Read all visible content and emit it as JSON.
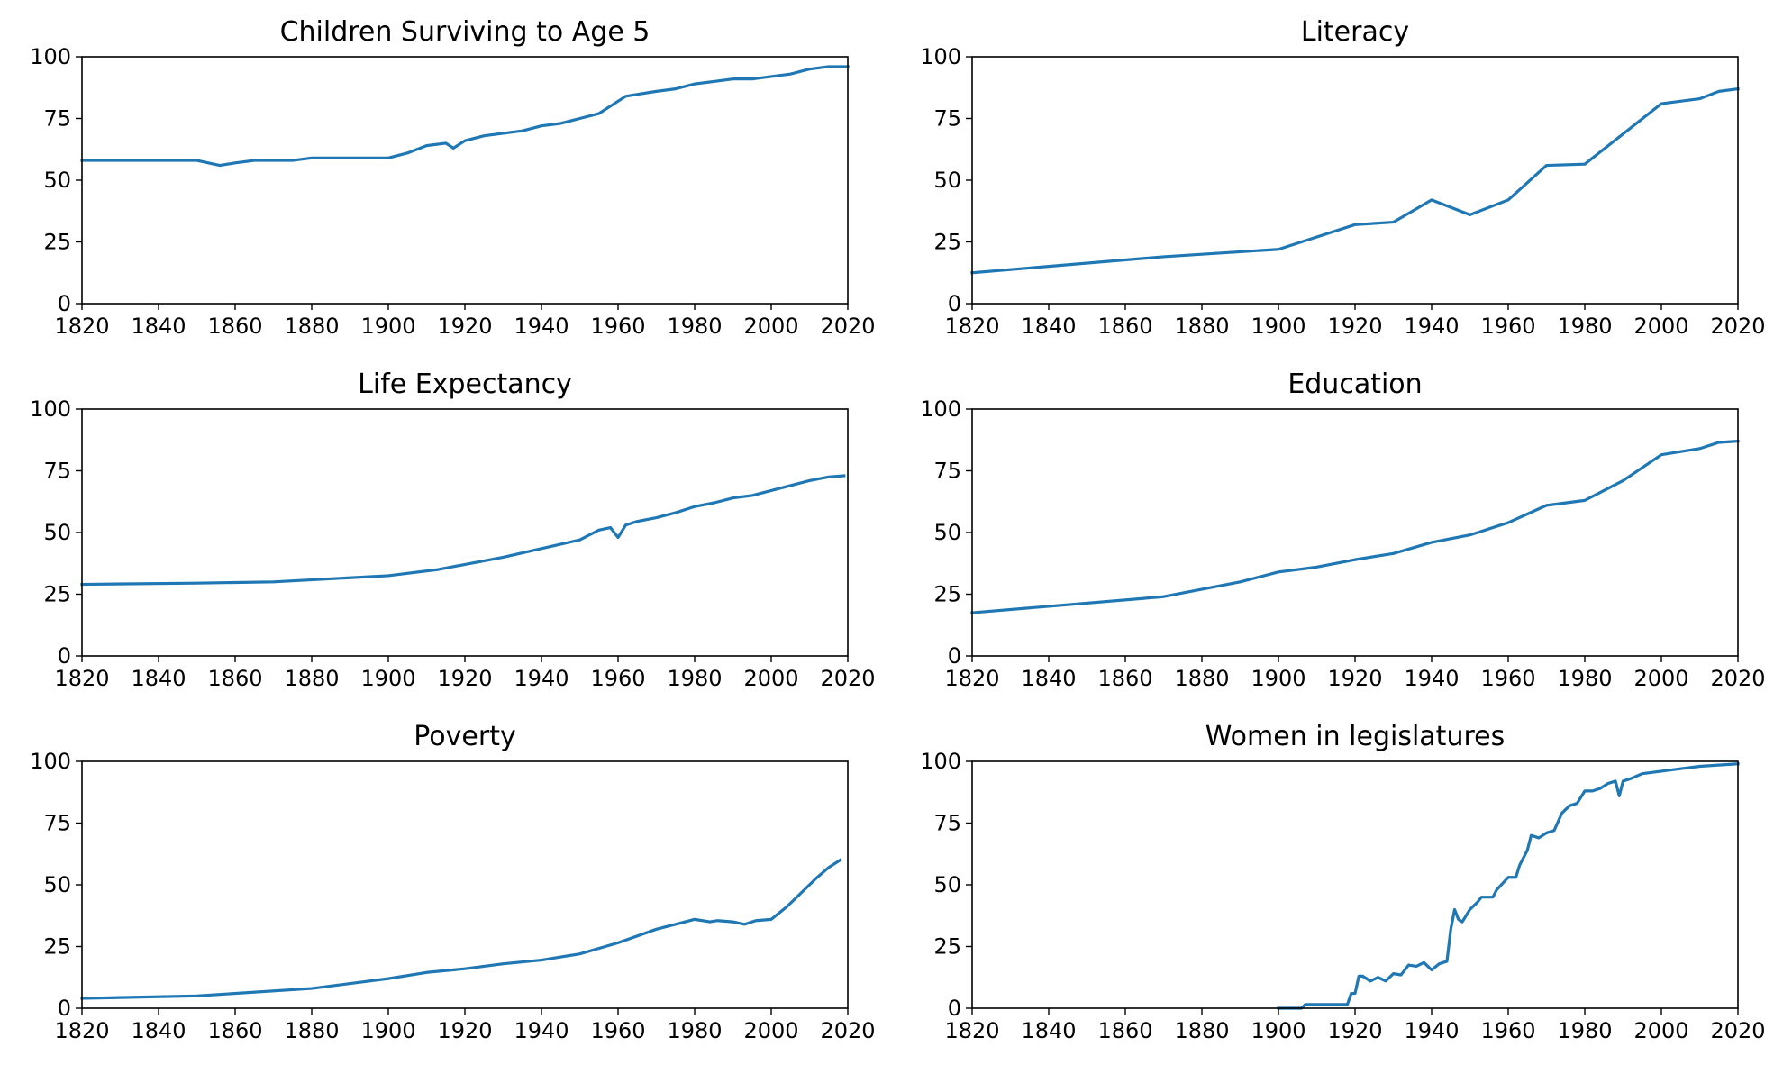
{
  "line_color": "#1f77b4",
  "chart_data": [
    {
      "type": "line",
      "title": "Children Surviving to Age 5",
      "xlim": [
        1820,
        2020
      ],
      "ylim": [
        0,
        100
      ],
      "xticks": [
        "1820",
        "1840",
        "1860",
        "1880",
        "1900",
        "1920",
        "1940",
        "1960",
        "1980",
        "2000",
        "2020"
      ],
      "yticks": [
        "0",
        "25",
        "50",
        "75",
        "100"
      ],
      "series": [
        {
          "name": "Children Surviving to Age 5",
          "x": [
            1820,
            1830,
            1840,
            1845,
            1850,
            1853,
            1856,
            1860,
            1865,
            1870,
            1875,
            1880,
            1885,
            1890,
            1895,
            1900,
            1905,
            1910,
            1915,
            1917,
            1920,
            1925,
            1930,
            1935,
            1940,
            1945,
            1950,
            1955,
            1958,
            1962,
            1966,
            1970,
            1975,
            1980,
            1985,
            1990,
            1995,
            2000,
            2005,
            2010,
            2015,
            2020
          ],
          "y": [
            58,
            58,
            58,
            58,
            58,
            57,
            56,
            57,
            58,
            58,
            58,
            59,
            59,
            59,
            59,
            59,
            61,
            64,
            65,
            63,
            66,
            68,
            69,
            70,
            72,
            73,
            75,
            77,
            80,
            84,
            85,
            86,
            87,
            89,
            90,
            91,
            91,
            92,
            93,
            95,
            96,
            96
          ]
        }
      ]
    },
    {
      "type": "line",
      "title": "Literacy",
      "xlim": [
        1820,
        2020
      ],
      "ylim": [
        0,
        100
      ],
      "xticks": [
        "1820",
        "1840",
        "1860",
        "1880",
        "1900",
        "1920",
        "1940",
        "1960",
        "1980",
        "2000",
        "2020"
      ],
      "yticks": [
        "0",
        "25",
        "50",
        "75",
        "100"
      ],
      "series": [
        {
          "name": "Literacy",
          "x": [
            1820,
            1870,
            1900,
            1920,
            1930,
            1940,
            1950,
            1960,
            1970,
            1980,
            2000,
            2010,
            2015,
            2020
          ],
          "y": [
            12.5,
            19,
            22,
            32,
            33,
            42,
            36,
            42,
            56,
            56.5,
            81,
            83,
            86,
            87
          ]
        }
      ]
    },
    {
      "type": "line",
      "title": "Life Expectancy",
      "xlim": [
        1820,
        2020
      ],
      "ylim": [
        0,
        100
      ],
      "xticks": [
        "1820",
        "1840",
        "1860",
        "1880",
        "1900",
        "1920",
        "1940",
        "1960",
        "1980",
        "2000",
        "2020"
      ],
      "yticks": [
        "0",
        "25",
        "50",
        "75",
        "100"
      ],
      "series": [
        {
          "name": "Life Expectancy",
          "x": [
            1820,
            1850,
            1870,
            1900,
            1913,
            1930,
            1950,
            1955,
            1958,
            1960,
            1962,
            1965,
            1970,
            1975,
            1980,
            1985,
            1990,
            1995,
            2000,
            2005,
            2010,
            2015,
            2019
          ],
          "y": [
            29,
            29.5,
            30,
            32.5,
            35,
            40,
            47,
            51,
            52,
            48,
            53,
            54.5,
            56,
            58,
            60.5,
            62,
            64,
            65,
            67,
            69,
            71,
            72.5,
            73
          ]
        }
      ]
    },
    {
      "type": "line",
      "title": "Education",
      "xlim": [
        1820,
        2020
      ],
      "ylim": [
        0,
        100
      ],
      "xticks": [
        "1820",
        "1840",
        "1860",
        "1880",
        "1900",
        "1920",
        "1940",
        "1960",
        "1980",
        "2000",
        "2020"
      ],
      "yticks": [
        "0",
        "25",
        "50",
        "75",
        "100"
      ],
      "series": [
        {
          "name": "Education",
          "x": [
            1820,
            1870,
            1890,
            1900,
            1910,
            1920,
            1930,
            1940,
            1950,
            1960,
            1970,
            1980,
            1990,
            2000,
            2010,
            2015,
            2020
          ],
          "y": [
            17.5,
            24,
            30,
            34,
            36,
            39,
            41.5,
            46,
            49,
            54,
            61,
            63,
            71,
            81.5,
            84,
            86.5,
            87
          ]
        }
      ]
    },
    {
      "type": "line",
      "title": "Poverty",
      "xlim": [
        1820,
        2020
      ],
      "ylim": [
        0,
        100
      ],
      "xticks": [
        "1820",
        "1840",
        "1860",
        "1880",
        "1900",
        "1920",
        "1940",
        "1960",
        "1980",
        "2000",
        "2020"
      ],
      "yticks": [
        "0",
        "25",
        "50",
        "75",
        "100"
      ],
      "series": [
        {
          "name": "Poverty",
          "x": [
            1820,
            1850,
            1880,
            1900,
            1910,
            1920,
            1930,
            1940,
            1950,
            1960,
            1970,
            1980,
            1984,
            1986,
            1990,
            1993,
            1996,
            2000,
            2004,
            2008,
            2012,
            2015,
            2018
          ],
          "y": [
            4,
            5,
            8,
            12,
            14.5,
            16,
            18,
            19.5,
            22,
            26.5,
            32,
            36,
            35,
            35.5,
            35,
            34,
            35.5,
            36,
            41,
            47,
            53,
            57,
            60
          ]
        }
      ]
    },
    {
      "type": "line",
      "title": "Women in legislatures",
      "xlim": [
        1820,
        2020
      ],
      "ylim": [
        0,
        100
      ],
      "xticks": [
        "1820",
        "1840",
        "1860",
        "1880",
        "1900",
        "1920",
        "1940",
        "1960",
        "1980",
        "2000",
        "2020"
      ],
      "yticks": [
        "0",
        "25",
        "50",
        "75",
        "100"
      ],
      "series": [
        {
          "name": "Women in legislatures",
          "x": [
            1900,
            1906,
            1907,
            1918,
            1919,
            1920,
            1921,
            1922,
            1924,
            1926,
            1928,
            1930,
            1932,
            1934,
            1936,
            1938,
            1940,
            1942,
            1944,
            1945,
            1946,
            1947,
            1948,
            1950,
            1952,
            1953,
            1956,
            1957,
            1960,
            1962,
            1963,
            1965,
            1966,
            1968,
            1970,
            1972,
            1974,
            1976,
            1978,
            1980,
            1982,
            1984,
            1986,
            1988,
            1989,
            1990,
            1992,
            1995,
            2000,
            2005,
            2010,
            2015,
            2020
          ],
          "y": [
            0,
            0,
            1.5,
            1.5,
            6,
            6,
            13,
            13,
            11,
            12.5,
            11,
            14,
            13.5,
            17.5,
            17,
            18.5,
            15.5,
            18,
            19,
            32,
            40,
            36,
            35,
            40,
            43,
            45,
            45,
            48,
            53,
            53,
            58,
            64,
            70,
            69,
            71,
            72,
            79,
            82,
            83,
            88,
            88,
            89,
            91,
            92,
            86,
            92,
            93,
            95,
            96,
            97,
            98,
            98.5,
            99
          ]
        }
      ]
    }
  ]
}
